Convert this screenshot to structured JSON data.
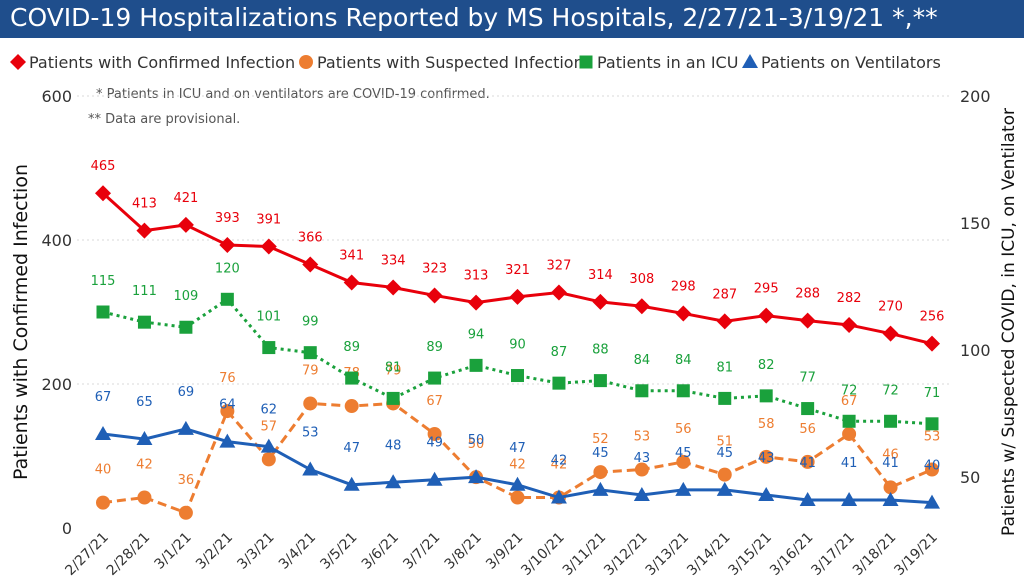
{
  "title": "COVID-19 Hospitalizations Reported by MS Hospitals, 2/27/21-3/19/21 *,**",
  "colors": {
    "title_bg": "#1f4e8c",
    "confirmed": "#e8000b",
    "suspected": "#ed7d31",
    "icu": "#1aa13c",
    "ventilators": "#1f5fb6",
    "grid": "#d9d9d9"
  },
  "chart_data": {
    "type": "line",
    "categories": [
      "2/27/21",
      "2/28/21",
      "3/1/21",
      "3/2/21",
      "3/3/21",
      "3/4/21",
      "3/5/21",
      "3/6/21",
      "3/7/21",
      "3/8/21",
      "3/9/21",
      "3/10/21",
      "3/11/21",
      "3/12/21",
      "3/13/21",
      "3/14/21",
      "3/15/21",
      "3/16/21",
      "3/17/21",
      "3/18/21",
      "3/19/21"
    ],
    "legend_position": "top",
    "grid": true,
    "notes": [
      "* Patients in ICU and on ventilators are COVID-19 confirmed.",
      "** Data are provisional."
    ],
    "ylabel": "Patients with Confirmed Infection",
    "y2label": "Patients w/ Suspected COVID, in ICU, on Ventilator",
    "ylim": [
      0,
      600
    ],
    "y2lim": [
      30,
      200
    ],
    "yticks": [
      "600",
      "400",
      "200",
      "0"
    ],
    "y2ticks": [
      "200",
      "150",
      "100",
      "50"
    ],
    "series": [
      {
        "name": "Patients with Confirmed Infection",
        "axis": "left",
        "marker": "diamond",
        "dashed": false,
        "color_key": "confirmed",
        "values": [
          465,
          413,
          421,
          393,
          391,
          366,
          341,
          334,
          323,
          313,
          321,
          327,
          314,
          308,
          298,
          287,
          295,
          288,
          282,
          270,
          256
        ]
      },
      {
        "name": "Patients with Suspected Infection",
        "axis": "right",
        "marker": "circle",
        "dashed": true,
        "color_key": "suspected",
        "values": [
          40,
          42,
          36,
          76,
          57,
          79,
          78,
          79,
          67,
          50,
          42,
          42,
          52,
          53,
          56,
          51,
          58,
          56,
          67,
          46,
          53
        ]
      },
      {
        "name": "Patients in an ICU",
        "axis": "right",
        "marker": "square",
        "dashed": true,
        "color_key": "icu",
        "values": [
          115,
          111,
          109,
          120,
          101,
          99,
          89,
          81,
          89,
          94,
          90,
          87,
          88,
          84,
          84,
          81,
          82,
          77,
          72,
          72,
          71
        ]
      },
      {
        "name": "Patients on Ventilators",
        "axis": "right",
        "marker": "triangle",
        "dashed": false,
        "color_key": "ventilators",
        "values": [
          67,
          65,
          69,
          64,
          62,
          53,
          47,
          48,
          49,
          50,
          47,
          42,
          45,
          43,
          45,
          45,
          43,
          41,
          41,
          41,
          40
        ]
      }
    ]
  }
}
